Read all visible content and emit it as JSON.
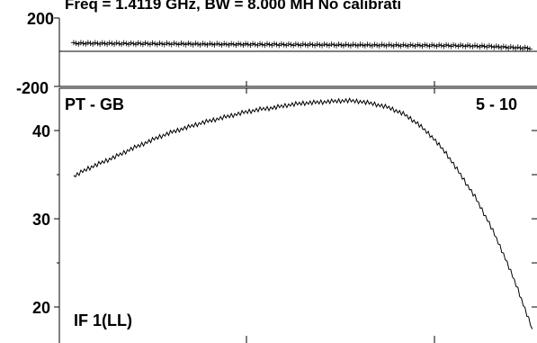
{
  "header": {
    "title": "Freq = 1.4119 GHz, BW = 8.000 MH   No calibrati"
  },
  "colors": {
    "line": "#000000",
    "background": "#ffffff"
  },
  "chart_data": [
    {
      "type": "scatter",
      "panel": "phase",
      "yticks": [
        "200",
        "-200"
      ],
      "ylim": [
        -200,
        200
      ],
      "xlim": [
        0,
        1
      ],
      "grid": false,
      "zero_line": true,
      "marker": "plus",
      "series": [
        {
          "x": [
            0.03,
            0.06,
            0.09,
            0.12,
            0.15,
            0.18,
            0.21,
            0.24,
            0.27,
            0.3,
            0.33,
            0.36,
            0.39,
            0.42,
            0.45,
            0.48,
            0.51,
            0.54,
            0.57,
            0.6,
            0.63,
            0.66,
            0.69,
            0.72,
            0.75,
            0.78,
            0.81,
            0.84,
            0.87,
            0.9,
            0.93,
            0.96,
            0.99
          ],
          "values": [
            52,
            52,
            51,
            51,
            50,
            50,
            49,
            49,
            48,
            47,
            47,
            46,
            46,
            45,
            45,
            44,
            44,
            43,
            43,
            42,
            42,
            41,
            41,
            40,
            40,
            39,
            39,
            38,
            36,
            34,
            30,
            26,
            22
          ]
        }
      ]
    },
    {
      "type": "line",
      "panel": "amplitude",
      "title": "PT - GB",
      "baseline_label": "5 - 10",
      "channel_label": "IF 1(LL)",
      "yticks": [
        "40",
        "30",
        "20"
      ],
      "ylim": [
        18,
        44
      ],
      "xlim": [
        0,
        1
      ],
      "grid": false,
      "series": [
        {
          "x": [
            0.03,
            0.06,
            0.09,
            0.12,
            0.15,
            0.18,
            0.21,
            0.24,
            0.27,
            0.3,
            0.33,
            0.36,
            0.39,
            0.42,
            0.45,
            0.48,
            0.51,
            0.54,
            0.57,
            0.6,
            0.63,
            0.66,
            0.69,
            0.72,
            0.75,
            0.78,
            0.81,
            0.84,
            0.87,
            0.9,
            0.93,
            0.96,
            0.99
          ],
          "values": [
            34.8,
            35.7,
            36.4,
            37.1,
            37.9,
            38.6,
            39.3,
            39.9,
            40.4,
            40.9,
            41.3,
            41.7,
            42.1,
            42.4,
            42.6,
            42.9,
            43.1,
            43.2,
            43.3,
            43.4,
            43.3,
            43.0,
            42.6,
            41.9,
            40.8,
            39.3,
            37.4,
            35.0,
            32.5,
            29.5,
            26.0,
            22.0,
            17.5
          ]
        }
      ]
    }
  ]
}
